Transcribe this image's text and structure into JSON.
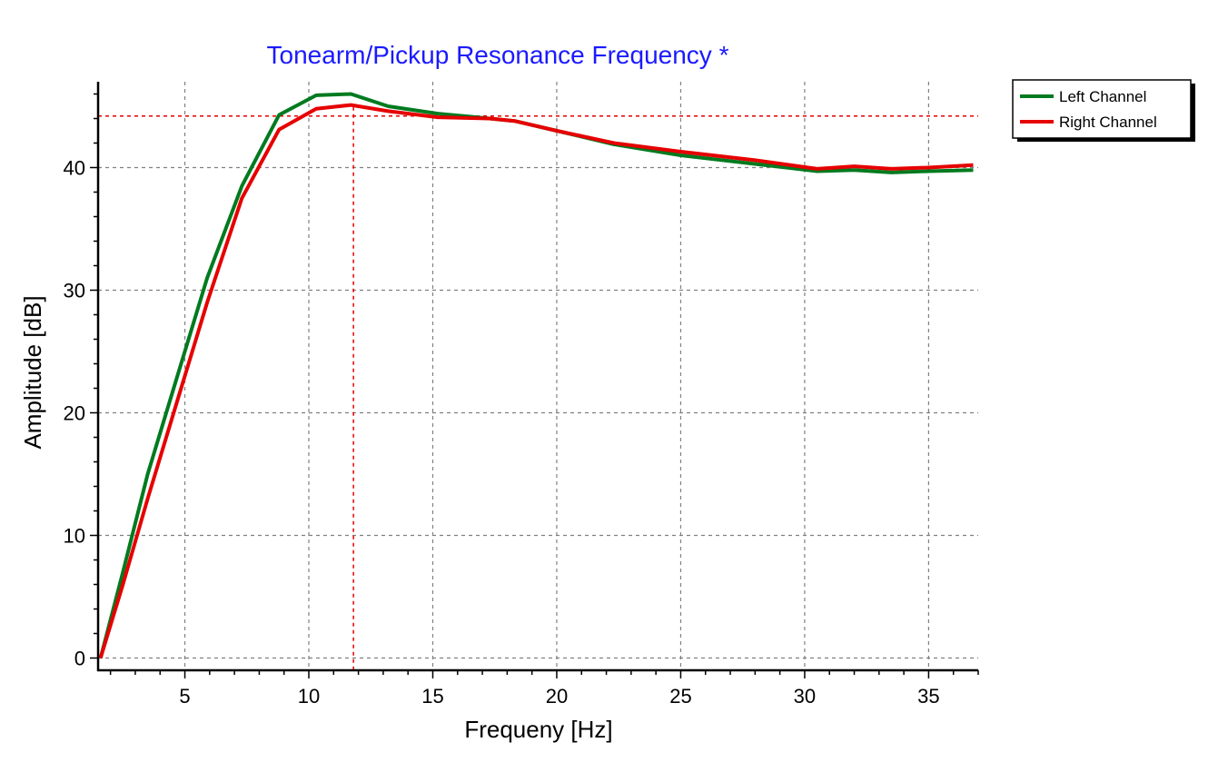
{
  "chart_data": {
    "type": "line",
    "title": "Tonearm/Pickup Resonance Frequency *",
    "xlabel": "Frequeny [Hz]",
    "ylabel": "Amplitude [dB]",
    "xlim": [
      1.5,
      37
    ],
    "ylim": [
      -1,
      47
    ],
    "xticks": [
      5,
      10,
      15,
      20,
      25,
      30,
      35
    ],
    "yticks": [
      0,
      10,
      20,
      30,
      40
    ],
    "grid": true,
    "legend_position": "top-right",
    "series": [
      {
        "name": "Left Channel",
        "color": "#007a1f",
        "x": [
          1.6,
          2.5,
          3.5,
          4.7,
          5.9,
          7.3,
          8.8,
          10.3,
          11.7,
          13.2,
          15.2,
          17.3,
          18.3,
          20.0,
          22.3,
          25.0,
          28.0,
          30.5,
          32.0,
          33.5,
          35.0,
          36.8
        ],
        "y": [
          0,
          7.0,
          15.0,
          23.0,
          31.0,
          38.5,
          44.3,
          45.9,
          46.0,
          45.0,
          44.4,
          44.0,
          43.8,
          43.0,
          41.9,
          41.0,
          40.3,
          39.7,
          39.8,
          39.6,
          39.7,
          39.8
        ]
      },
      {
        "name": "Right Channel",
        "color": "#e60000",
        "x": [
          1.6,
          2.5,
          3.5,
          4.7,
          5.9,
          7.3,
          8.8,
          10.3,
          11.7,
          13.2,
          15.2,
          17.3,
          18.3,
          20.0,
          22.3,
          25.0,
          28.0,
          30.5,
          32.0,
          33.5,
          35.0,
          36.8
        ],
        "y": [
          0,
          6.0,
          13.0,
          21.0,
          29.0,
          37.5,
          43.1,
          44.8,
          45.1,
          44.6,
          44.1,
          44.0,
          43.8,
          43.0,
          42.0,
          41.3,
          40.6,
          39.9,
          40.1,
          39.9,
          40.0,
          40.2
        ]
      }
    ],
    "markers": {
      "x": 11.8,
      "y": 44.2,
      "color": "#e60000"
    }
  },
  "colors": {
    "title": "#1a1aff",
    "grid": "#808080",
    "axis": "#000000"
  }
}
